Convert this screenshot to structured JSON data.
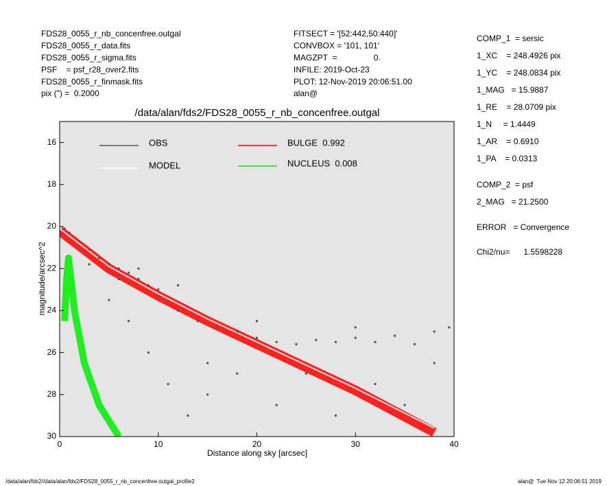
{
  "header_left": [
    "FDS28_0055_r_nb_concenfree.outgal",
    "FDS28_0055_r_data.fits",
    "FDS28_0055_r_sigma.fits",
    "PSF    = psf_r28_over2.fits",
    "FDS28_0055_r_finmask.fits",
    "pix (\") =  0.2000"
  ],
  "header_middle": [
    "FITSECT = '[52:442,50:440]'",
    "CONVBOX = '101, 101'",
    "MAGZPT  =                0.",
    "INFILE: 2019-Oct-23",
    "PLOT: 12-Nov-2019 20:06:51.00",
    "alan@"
  ],
  "header_right": [
    "COMP_1  = sersic",
    "1_XC    = 248.4926 pix",
    "1_YC    = 248.0834 pix",
    "1_MAG   = 15.9887",
    "1_RE    = 28.0709 pix",
    "1_N     = 1.4449",
    "1_AR    = 0.6910",
    "1_PA    = 0.0313",
    "COMP_2  = psf",
    "2_MAG   = 21.2500",
    "ERROR   = Convergence",
    "Chi2/nu=      1.5598228"
  ],
  "footer_left": "/data/alan/fds2//data/alan/fds2/FDS28_0055_r_nb_concenfree.outgal_profile2",
  "footer_right": "alan@  Tue Nov 12 20:06:51 2019",
  "chart_data": {
    "type": "scatter",
    "title": "/data/alan/fds2/FDS28_0055_r_nb_concenfree.outgal",
    "x_label": "Distance along sky [arcsec]",
    "y_label": "magnitude/arcsec^2",
    "xlim": [
      0,
      40
    ],
    "ylim": [
      15,
      30
    ],
    "y_inverted": true,
    "xticks": [
      0,
      10,
      20,
      30,
      40
    ],
    "yticks": [
      16,
      18,
      20,
      22,
      24,
      26,
      28,
      30
    ],
    "background": "#e5e5e5",
    "series": [
      {
        "name": "OBS",
        "color": "#555555",
        "mode": "points",
        "x": [
          0.5,
          1,
          2,
          3,
          4,
          5,
          6,
          7,
          8,
          9,
          10,
          11,
          12,
          14,
          16,
          18,
          20,
          22,
          24,
          26,
          28,
          30,
          32,
          34,
          36,
          38,
          39.5,
          5,
          7,
          9,
          11,
          13,
          15,
          18,
          22,
          25,
          28,
          32,
          35,
          38,
          3,
          8,
          10,
          20,
          30,
          12,
          6,
          15
        ],
        "values": [
          20.1,
          20.3,
          20.7,
          21.1,
          21.5,
          21.8,
          22.0,
          22.2,
          22.5,
          22.8,
          23.3,
          23.6,
          24.0,
          24.5,
          24.8,
          25.0,
          25.3,
          25.5,
          25.6,
          25.4,
          25.5,
          25.3,
          25.5,
          25.2,
          25.6,
          25.0,
          24.8,
          23.5,
          24.5,
          26.0,
          27.5,
          29.0,
          28.0,
          27.0,
          28.5,
          27.0,
          29.0,
          27.5,
          28.5,
          26.5,
          21.8,
          22.0,
          23.0,
          24.5,
          24.8,
          22.8,
          22.5,
          26.5
        ]
      },
      {
        "name": "MODEL",
        "color": "#ffffff",
        "mode": "line",
        "width": 2,
        "x": [
          0,
          5,
          10,
          15,
          20,
          30,
          38
        ],
        "values": [
          20.1,
          21.9,
          23.2,
          24.4,
          25.5,
          27.7,
          29.6
        ]
      },
      {
        "name": "BULGE  0.992",
        "color": "#ff0000",
        "mode": "line",
        "width": 14,
        "x": [
          0,
          5,
          10,
          15,
          20,
          30,
          38
        ],
        "values": [
          20.2,
          22.0,
          23.3,
          24.5,
          25.6,
          27.8,
          29.8
        ]
      },
      {
        "name": "NUCLEUS  0.008",
        "color": "#00ee00",
        "mode": "line",
        "width": 10,
        "x": [
          0.5,
          0.7,
          0.9,
          1.5,
          2.5,
          4,
          6
        ],
        "values": [
          24.5,
          22.5,
          21.5,
          24.0,
          26.5,
          28.5,
          30.0
        ]
      }
    ]
  }
}
